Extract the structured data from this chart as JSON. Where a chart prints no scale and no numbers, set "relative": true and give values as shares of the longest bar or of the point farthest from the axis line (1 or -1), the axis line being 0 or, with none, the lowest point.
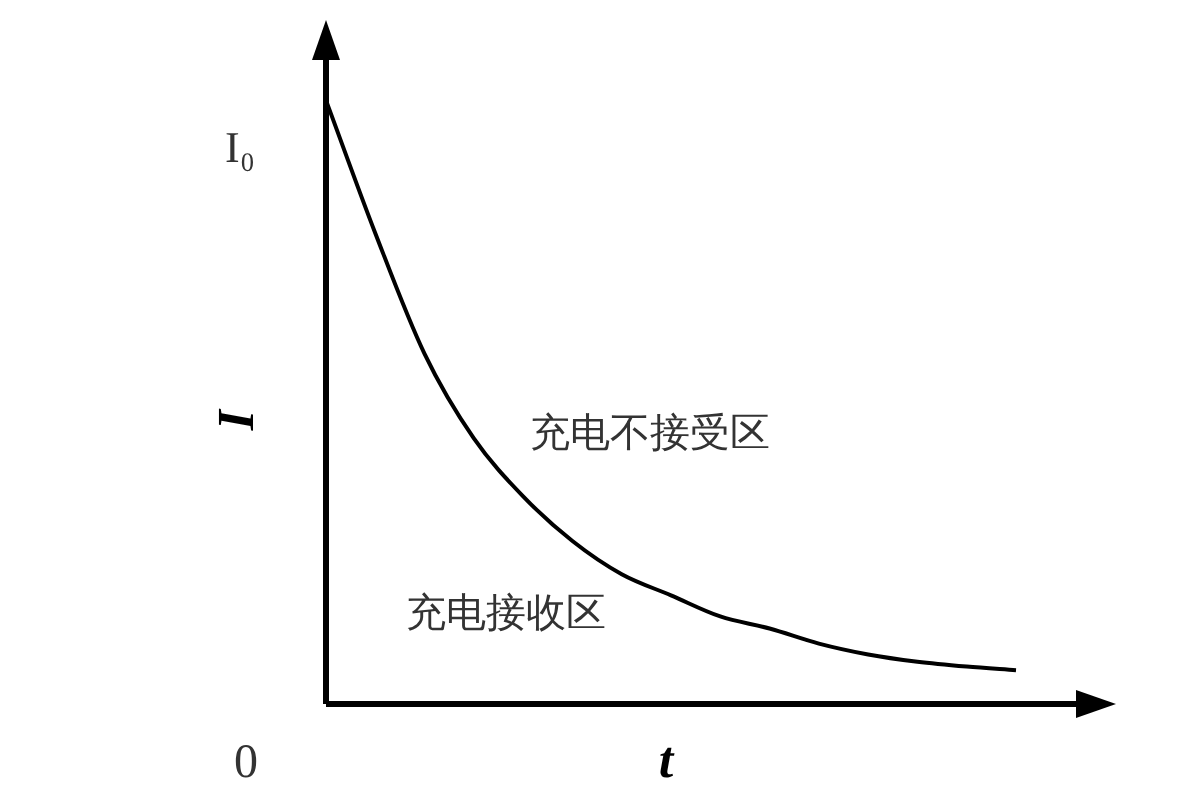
{
  "chart_data": {
    "type": "line",
    "relative": true,
    "xlabel": "t",
    "ylabel": "I",
    "categories": [
      null,
      null,
      null,
      null,
      null,
      null,
      null,
      null,
      null,
      null,
      null,
      null,
      null,
      null,
      null
    ],
    "series": [
      {
        "color": "#000000",
        "values": [
          1,
          0.78,
          0.58,
          0.44,
          0.344,
          0.27,
          0.215,
          0.18,
          0.145,
          0.125,
          0.1,
          0.082,
          0.07,
          0.062,
          0.056
        ]
      }
    ],
    "annotations": [
      "I₀",
      "0",
      "充电不接受区",
      "充电接收区"
    ],
    "marker": "none",
    "line_style": "solid",
    "legend": false
  }
}
